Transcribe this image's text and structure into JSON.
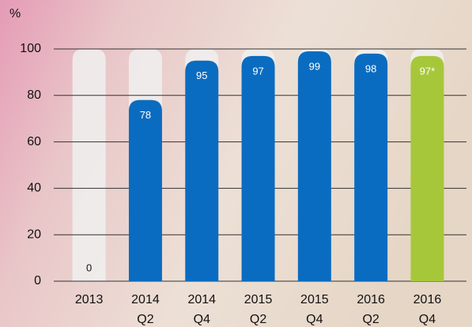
{
  "chart_data": {
    "type": "bar",
    "y_label": "%",
    "categories": [
      [
        "2013"
      ],
      [
        "2014",
        "Q2"
      ],
      [
        "2014",
        "Q4"
      ],
      [
        "2015",
        "Q2"
      ],
      [
        "2015",
        "Q4"
      ],
      [
        "2016",
        "Q2"
      ],
      [
        "2016",
        "Q4"
      ]
    ],
    "values": [
      0,
      78,
      95,
      97,
      99,
      98,
      97
    ],
    "value_labels": [
      "0",
      "78",
      "95",
      "97",
      "99",
      "98",
      "97*"
    ],
    "colors": [
      "#0a6cc0",
      "#0a6cc0",
      "#0a6cc0",
      "#0a6cc0",
      "#0a6cc0",
      "#0a6cc0",
      "#a7c73b"
    ],
    "ylim": [
      0,
      100
    ],
    "yticks": [
      0,
      20,
      40,
      60,
      80,
      100
    ],
    "grid": true
  }
}
